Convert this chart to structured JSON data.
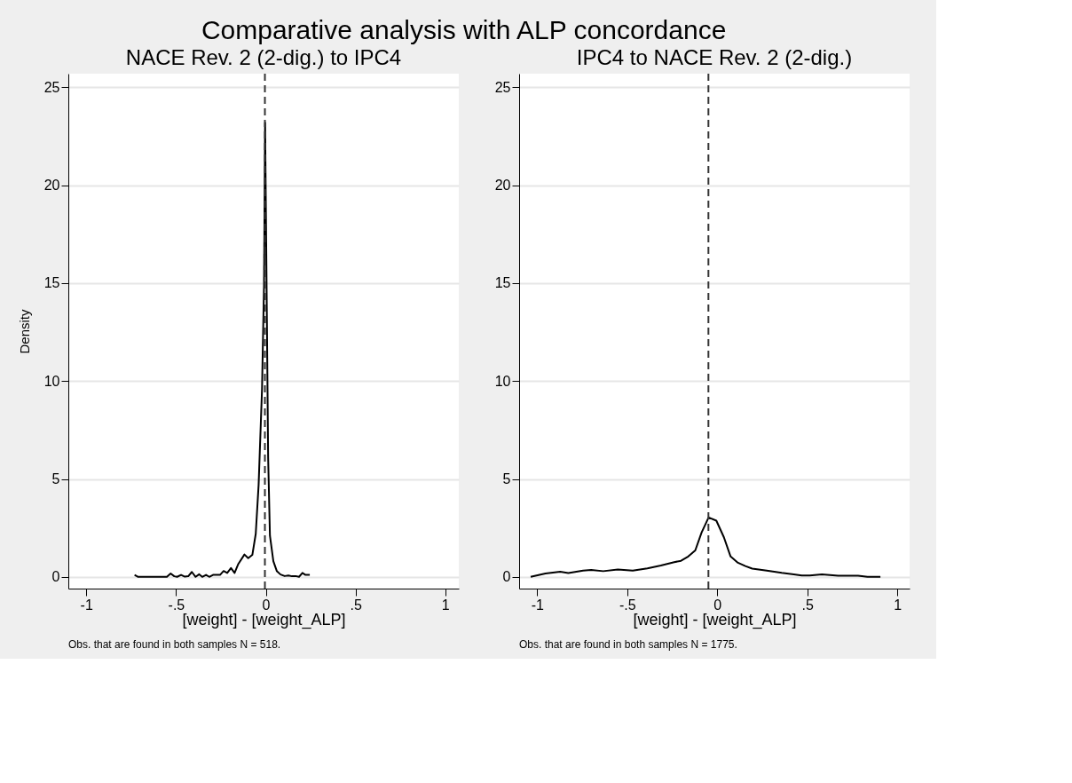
{
  "chart_data": [
    {
      "type": "line",
      "title": "Comparative analysis with ALP concordance",
      "subtitle": "NACE Rev. 2 (2-dig.) to IPC4",
      "xlabel": "[weight] - [weight_ALP]",
      "ylabel": "Density",
      "series": [
        {
          "color": "#000000",
          "x": [
            -0.731,
            -0.711,
            -0.551,
            -0.53,
            -0.51,
            -0.494,
            -0.472,
            -0.451,
            -0.432,
            -0.412,
            -0.391,
            -0.371,
            -0.354,
            -0.333,
            -0.315,
            -0.294,
            -0.255,
            -0.235,
            -0.215,
            -0.194,
            -0.174,
            -0.153,
            -0.119,
            -0.098,
            -0.075,
            -0.056,
            -0.04,
            -0.021,
            -0.01,
            -0.004,
            0.006,
            0.013,
            0.023,
            0.042,
            0.061,
            0.082,
            0.105,
            0.126,
            0.145,
            0.166,
            0.185,
            0.204,
            0.221,
            0.245
          ],
          "values": [
            0.1,
            0,
            0,
            0.17,
            0.03,
            0,
            0.1,
            0.01,
            0.03,
            0.25,
            0,
            0.13,
            0,
            0.1,
            0,
            0.1,
            0.1,
            0.3,
            0.2,
            0.45,
            0.2,
            0.66,
            1.14,
            0.95,
            1.12,
            2.2,
            4.7,
            9.6,
            14.9,
            23.2,
            13.2,
            6.1,
            2.1,
            0.8,
            0.3,
            0.12,
            0.04,
            0.07,
            0.03,
            0.04,
            0,
            0.2,
            0.1,
            0.1
          ]
        }
      ],
      "xlim": [
        -1.1,
        1.075
      ],
      "ylim": [
        -0.6,
        25.7
      ],
      "xticks": [
        {
          "value": -1,
          "label": "-1"
        },
        {
          "value": -0.5,
          "label": "-.5"
        },
        0,
        {
          "value": 0.5,
          "label": ".5"
        },
        1
      ],
      "yticks": [
        0,
        5,
        10,
        15,
        20,
        25
      ],
      "grid": "y",
      "legend": false,
      "marker": "none",
      "line_style": "solid",
      "ref_lines": [
        {
          "axis": "x",
          "value": -0.005,
          "label": null,
          "color": "#333333",
          "line_style": "dashed"
        }
      ],
      "annotations": [
        "Obs. that are found in both samples N = 518."
      ]
    },
    {
      "type": "line",
      "subtitle": "IPC4 to NACE Rev. 2 (2-dig.)",
      "xlabel": "[weight] - [weight_ALP]",
      "series": [
        {
          "color": "#000000",
          "x": [
            -1.036,
            -0.954,
            -0.872,
            -0.827,
            -0.745,
            -0.7,
            -0.633,
            -0.552,
            -0.469,
            -0.388,
            -0.313,
            -0.239,
            -0.201,
            -0.161,
            -0.122,
            -0.087,
            -0.048,
            -0.005,
            0.037,
            0.074,
            0.115,
            0.156,
            0.194,
            0.275,
            0.358,
            0.425,
            0.469,
            0.514,
            0.581,
            0.671,
            0.782,
            0.834,
            0.906
          ],
          "values": [
            0,
            0.17,
            0.26,
            0.19,
            0.32,
            0.35,
            0.29,
            0.37,
            0.32,
            0.43,
            0.58,
            0.75,
            0.82,
            1.04,
            1.35,
            2.26,
            3.03,
            2.87,
            2.02,
            1.04,
            0.72,
            0.55,
            0.42,
            0.32,
            0.2,
            0.13,
            0.07,
            0.07,
            0.13,
            0.06,
            0.06,
            0,
            0
          ]
        }
      ],
      "xlim": [
        -1.1,
        1.068
      ],
      "ylim": [
        -0.6,
        25.7
      ],
      "xticks": [
        {
          "value": -1,
          "label": "-1"
        },
        {
          "value": -0.5,
          "label": "-.5"
        },
        0,
        {
          "value": 0.5,
          "label": ".5"
        },
        1
      ],
      "yticks": [
        0,
        5,
        10,
        15,
        20,
        25
      ],
      "grid": "y",
      "legend": false,
      "marker": "none",
      "line_style": "solid",
      "ref_lines": [
        {
          "axis": "x",
          "value": -0.049,
          "label": null,
          "color": "#333333",
          "line_style": "dashed"
        }
      ],
      "annotations": [
        "Obs. that are found in both samples N = 1775."
      ]
    }
  ]
}
